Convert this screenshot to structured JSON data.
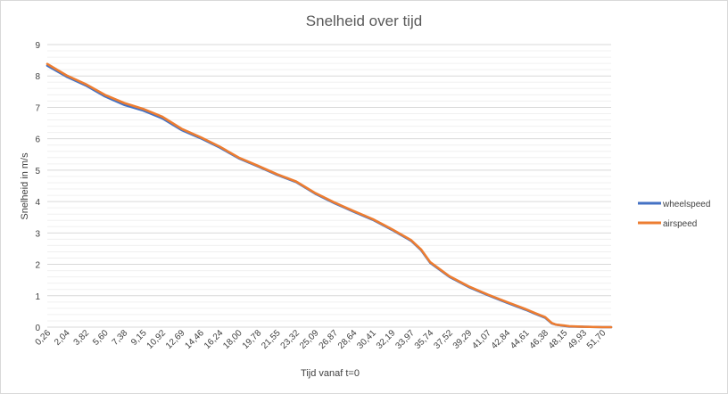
{
  "chart_data": {
    "type": "line",
    "title": "Snelheid over tijd",
    "xlabel": "Tijd vanaf t=0",
    "ylabel": "Snelheid in m/s",
    "ylim": [
      0,
      9
    ],
    "yticks": [
      "0",
      "1",
      "2",
      "3",
      "4",
      "5",
      "6",
      "7",
      "8",
      "9"
    ],
    "xlim": [
      0.26,
      52.5
    ],
    "xtick_labels": [
      "0,26",
      "2,04",
      "3,82",
      "5,60",
      "7,38",
      "9,15",
      "10,92",
      "12,69",
      "14,46",
      "16,24",
      "18,00",
      "19,78",
      "21,55",
      "23,32",
      "25,09",
      "26,87",
      "28,64",
      "30,41",
      "32,19",
      "33,97",
      "35,74",
      "37,52",
      "39,29",
      "41,07",
      "42,84",
      "44,61",
      "46,38",
      "48,15",
      "49,93",
      "51,70"
    ],
    "xtick_values": [
      0.26,
      2.04,
      3.82,
      5.6,
      7.38,
      9.15,
      10.92,
      12.69,
      14.46,
      16.24,
      18.0,
      19.78,
      21.55,
      23.32,
      25.09,
      26.87,
      28.64,
      30.41,
      32.19,
      33.97,
      35.74,
      37.52,
      39.29,
      41.07,
      42.84,
      44.61,
      46.38,
      48.15,
      49.93,
      51.7
    ],
    "grid": true,
    "legend_position": "right",
    "series": [
      {
        "name": "wheelspeed",
        "color": "#4472c4",
        "x": [
          0.26,
          2.04,
          3.82,
          5.6,
          7.38,
          9.15,
          10.92,
          12.69,
          14.46,
          16.24,
          18.0,
          19.78,
          21.55,
          23.32,
          25.09,
          26.87,
          28.64,
          30.41,
          32.19,
          33.97,
          34.9,
          35.74,
          37.52,
          39.29,
          41.07,
          42.84,
          44.61,
          45.5,
          46.38,
          47.0,
          47.4,
          48.15,
          48.6,
          49.93,
          51.7,
          52.5
        ],
        "y": [
          8.33,
          7.98,
          7.7,
          7.35,
          7.08,
          6.9,
          6.65,
          6.28,
          6.02,
          5.72,
          5.38,
          5.12,
          4.85,
          4.62,
          4.25,
          3.95,
          3.68,
          3.42,
          3.1,
          2.75,
          2.45,
          2.05,
          1.6,
          1.28,
          1.02,
          0.78,
          0.55,
          0.42,
          0.3,
          0.12,
          0.08,
          0.04,
          0.02,
          0.01,
          0.0,
          0.0
        ]
      },
      {
        "name": "airspeed",
        "color": "#ed7d31",
        "x": [
          0.26,
          2.04,
          3.82,
          5.6,
          7.38,
          9.15,
          10.92,
          12.69,
          14.46,
          16.24,
          18.0,
          19.78,
          21.55,
          23.32,
          25.09,
          26.87,
          28.64,
          30.41,
          32.19,
          33.97,
          34.9,
          35.74,
          37.52,
          39.29,
          41.07,
          42.84,
          44.61,
          45.5,
          46.38,
          47.0,
          47.4,
          48.15,
          48.6,
          49.93,
          51.7,
          52.5
        ],
        "y": [
          8.38,
          8.02,
          7.74,
          7.4,
          7.14,
          6.95,
          6.7,
          6.32,
          6.05,
          5.75,
          5.4,
          5.14,
          4.87,
          4.64,
          4.27,
          3.97,
          3.7,
          3.44,
          3.12,
          2.77,
          2.47,
          2.07,
          1.62,
          1.3,
          1.04,
          0.8,
          0.57,
          0.44,
          0.32,
          0.13,
          0.08,
          0.05,
          0.03,
          0.01,
          0.0,
          0.0
        ]
      }
    ]
  }
}
